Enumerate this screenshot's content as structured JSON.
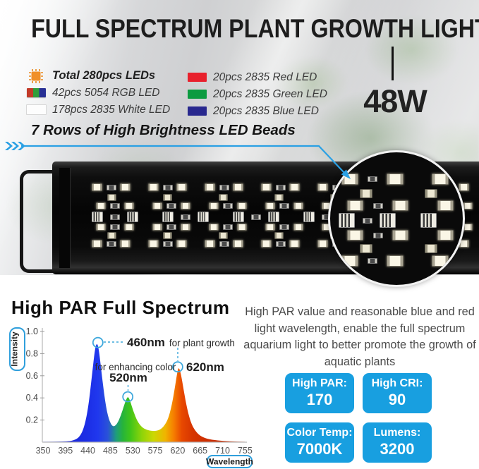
{
  "header": {
    "title": "FULL SPECTRUM PLANT GROWTH LIGHT"
  },
  "legend": {
    "left": [
      {
        "icon": "led-chip-icon",
        "label": "Total 280pcs LEDs"
      },
      {
        "icon": "rgb-swatch-icon",
        "label": "42pcs 5054 RGB LED"
      },
      {
        "icon": "white-swatch-icon",
        "label": "178pcs 2835 White LED"
      }
    ],
    "right": [
      {
        "icon": "red-swatch-icon",
        "label": "20pcs 2835 Red LED"
      },
      {
        "icon": "green-swatch-icon",
        "label": "20pcs 2835 Green LED"
      },
      {
        "icon": "blue-swatch-icon",
        "label": "20pcs 2835 Blue LED"
      }
    ]
  },
  "rows_caption": "7 Rows of High Brightness LED Beads",
  "wattage": "48W",
  "led_bar": {
    "rows_of_leds": 7
  },
  "description": "High PAR value and reasonable blue and red light wavelength, enable the full spectrum aquarium light to better promote the growth of aquatic plants",
  "badges": [
    {
      "label": "High PAR:",
      "value": "170"
    },
    {
      "label": "High CRI:",
      "value": "90"
    },
    {
      "label": "Color Temp:",
      "value": "7000K"
    },
    {
      "label": "Lumens:",
      "value": "3200"
    }
  ],
  "colors": {
    "accent_blue": "#2aa0e4",
    "badge_blue": "#189fe0"
  },
  "chart_data": {
    "type": "area",
    "title": "High PAR Full Spectrum",
    "xlabel": "Wavelength",
    "ylabel": "Intensity",
    "xlim": [
      350,
      755
    ],
    "ylim": [
      0,
      1.0
    ],
    "x_ticks": [
      350,
      395,
      440,
      485,
      530,
      575,
      620,
      665,
      710,
      755
    ],
    "y_tick_labels": [
      "1.0",
      "0.8",
      "0.6",
      "0.4",
      "0.2"
    ],
    "grid": false,
    "legend_position": "none",
    "peaks": [
      {
        "nm": 460,
        "intensity": 0.9,
        "label": "460nm",
        "note": "for plant growth"
      },
      {
        "nm": 520,
        "intensity": 0.41,
        "label": "520nm",
        "note": "for enhancing color"
      },
      {
        "nm": 620,
        "intensity": 0.68,
        "label": "620nm",
        "note": ""
      }
    ],
    "curve": [
      [
        350,
        0.004
      ],
      [
        395,
        0.006
      ],
      [
        412,
        0.015
      ],
      [
        424,
        0.05
      ],
      [
        433,
        0.14
      ],
      [
        441,
        0.32
      ],
      [
        448,
        0.6
      ],
      [
        454,
        0.84
      ],
      [
        458,
        0.9
      ],
      [
        462,
        0.84
      ],
      [
        468,
        0.6
      ],
      [
        475,
        0.35
      ],
      [
        482,
        0.2
      ],
      [
        490,
        0.135
      ],
      [
        498,
        0.16
      ],
      [
        506,
        0.24
      ],
      [
        513,
        0.34
      ],
      [
        518,
        0.4
      ],
      [
        521,
        0.41
      ],
      [
        525,
        0.37
      ],
      [
        531,
        0.28
      ],
      [
        539,
        0.19
      ],
      [
        548,
        0.135
      ],
      [
        558,
        0.11
      ],
      [
        570,
        0.1
      ],
      [
        582,
        0.105
      ],
      [
        592,
        0.14
      ],
      [
        601,
        0.21
      ],
      [
        608,
        0.33
      ],
      [
        614,
        0.48
      ],
      [
        619,
        0.63
      ],
      [
        622,
        0.68
      ],
      [
        626,
        0.63
      ],
      [
        632,
        0.47
      ],
      [
        639,
        0.3
      ],
      [
        646,
        0.18
      ],
      [
        654,
        0.11
      ],
      [
        664,
        0.06
      ],
      [
        678,
        0.03
      ],
      [
        700,
        0.015
      ],
      [
        725,
        0.008
      ],
      [
        755,
        0.004
      ]
    ]
  }
}
